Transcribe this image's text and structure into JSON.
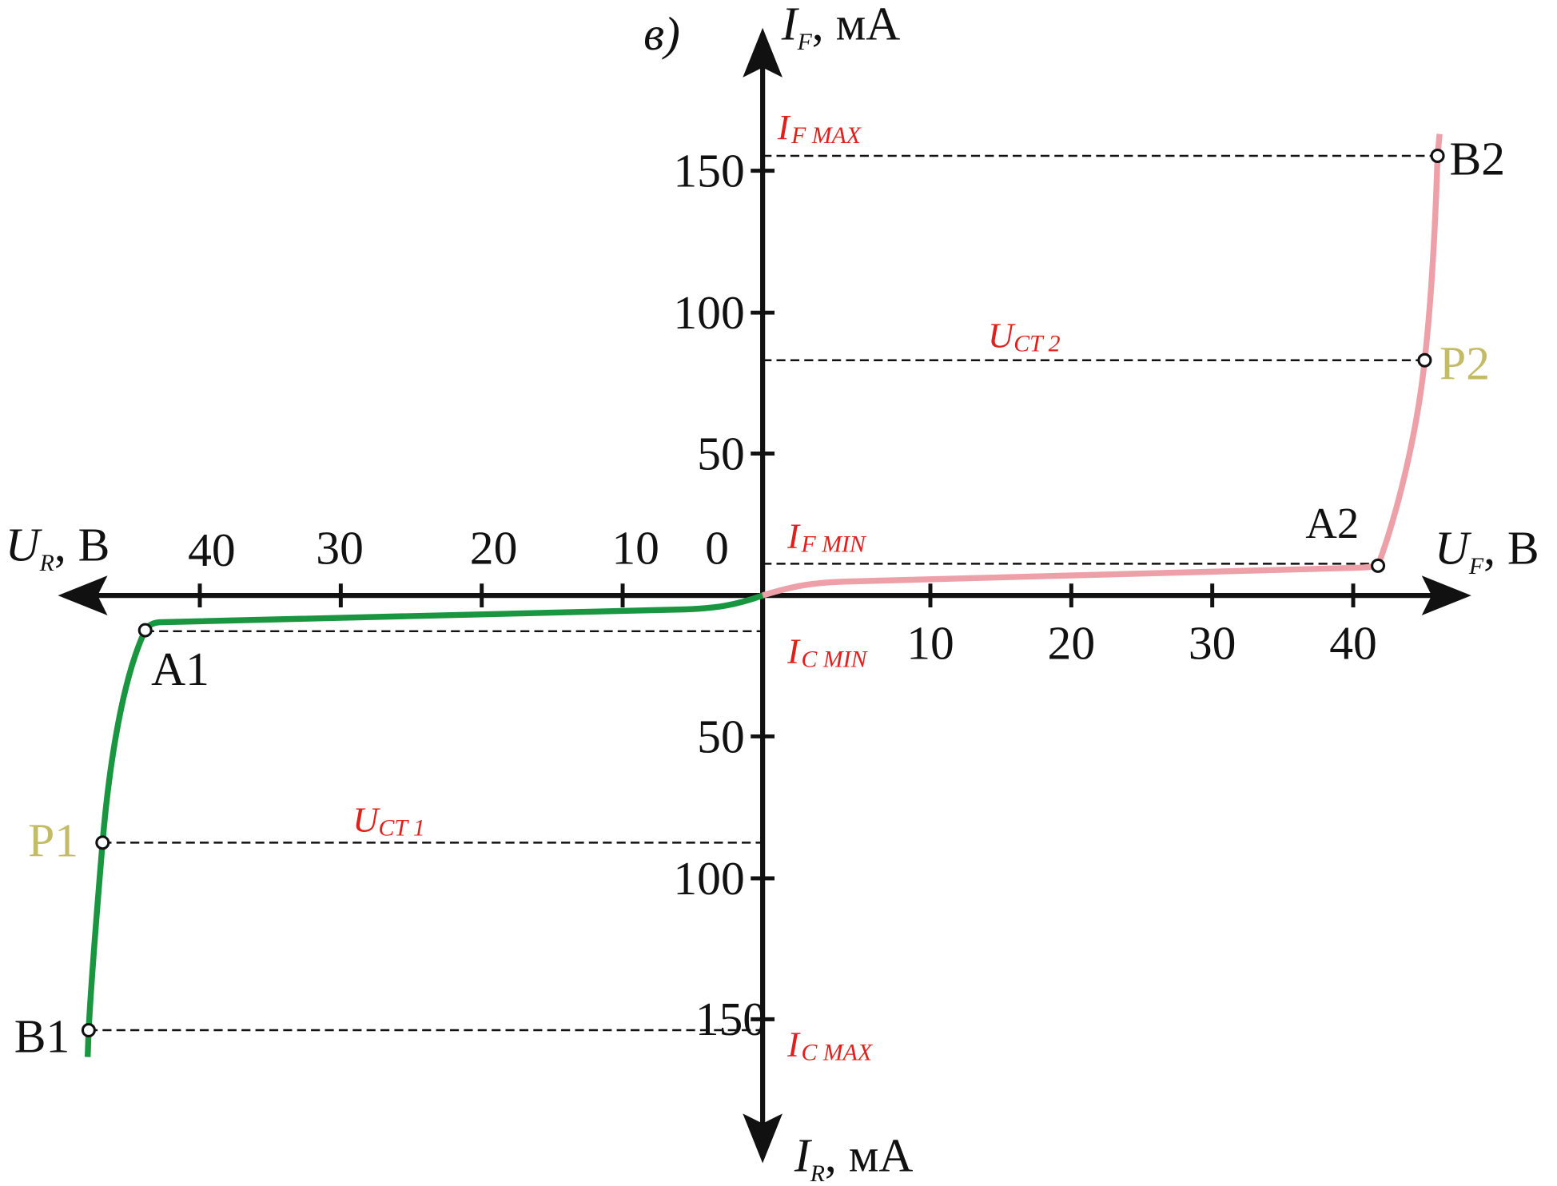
{
  "panel_label": "в)",
  "axes": {
    "y_pos": {
      "main": "I",
      "sub": "F",
      "rest": ", мА"
    },
    "y_neg": {
      "main": "I",
      "sub": "R",
      "rest": ", мА"
    },
    "x_pos": {
      "main": "U",
      "sub": "F",
      "rest": ", В"
    },
    "x_neg": {
      "main": "U",
      "sub": "R",
      "rest": ", В"
    },
    "x_pos_ticks": [
      "10",
      "20",
      "30",
      "40"
    ],
    "x_neg_ticks": [
      "40",
      "30",
      "20",
      "10",
      "0"
    ],
    "y_pos_ticks": [
      "150",
      "100",
      "50"
    ],
    "y_neg_ticks": [
      "50",
      "100",
      "150"
    ]
  },
  "levels": {
    "if_max": {
      "main": "I",
      "sub": "F MAX"
    },
    "uct2": {
      "main": "U",
      "sub": "CT 2"
    },
    "if_min": {
      "main": "I",
      "sub": "F MIN"
    },
    "ic_min": {
      "main": "I",
      "sub": "C MIN"
    },
    "uct1": {
      "main": "U",
      "sub": "CT 1"
    },
    "ic_max": {
      "main": "I",
      "sub": "C MAX"
    }
  },
  "points": {
    "b2": "B2",
    "p2": "P2",
    "a2": "A2",
    "a1": "A1",
    "p1": "P1",
    "b1": "B1"
  }
}
